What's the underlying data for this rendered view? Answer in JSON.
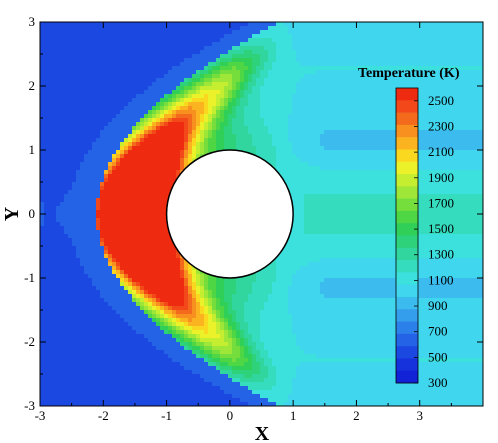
{
  "chart_data": {
    "type": "heatmap",
    "title": "",
    "xlabel": "X",
    "ylabel": "Y",
    "xlim": [
      -3,
      4
    ],
    "ylim": [
      -3,
      3
    ],
    "x_ticks": [
      "-3",
      "-2",
      "-1",
      "0",
      "1",
      "2",
      "3"
    ],
    "y_ticks": [
      "-3",
      "-2",
      "-1",
      "0",
      "1",
      "2",
      "3"
    ],
    "obstacle": {
      "shape": "circle",
      "center": [
        0,
        0
      ],
      "radius": 1,
      "fill": "#ffffff"
    },
    "legend": {
      "title": "Temperature (K)",
      "placement": "right",
      "labels": [
        "2500",
        "2300",
        "2100",
        "1900",
        "1700",
        "1500",
        "1300",
        "1100",
        "900",
        "700",
        "500",
        "300"
      ],
      "min": 300,
      "max": 2600,
      "levels": [
        {
          "value": 2550,
          "color": "#ee2a10"
        },
        {
          "value": 2450,
          "color": "#f2481a"
        },
        {
          "value": 2350,
          "color": "#f46a1c"
        },
        {
          "value": 2250,
          "color": "#f7901e"
        },
        {
          "value": 2150,
          "color": "#fbb420"
        },
        {
          "value": 2050,
          "color": "#fbd820"
        },
        {
          "value": 1950,
          "color": "#ecf22a"
        },
        {
          "value": 1850,
          "color": "#c6ee30"
        },
        {
          "value": 1750,
          "color": "#9ee638"
        },
        {
          "value": 1650,
          "color": "#76de3c"
        },
        {
          "value": 1550,
          "color": "#4ed644"
        },
        {
          "value": 1450,
          "color": "#2fcf58"
        },
        {
          "value": 1350,
          "color": "#2ed27a"
        },
        {
          "value": 1250,
          "color": "#30d69e"
        },
        {
          "value": 1150,
          "color": "#36dcbe"
        },
        {
          "value": 1050,
          "color": "#3ce0dc"
        },
        {
          "value": 950,
          "color": "#40d6ee"
        },
        {
          "value": 850,
          "color": "#3cbcee"
        },
        {
          "value": 750,
          "color": "#349eec"
        },
        {
          "value": 650,
          "color": "#2c80ea"
        },
        {
          "value": 550,
          "color": "#2462e6"
        },
        {
          "value": 450,
          "color": "#1c48e2"
        },
        {
          "value": 350,
          "color": "#1632dc"
        },
        {
          "value": 300,
          "color": "#1222d6"
        }
      ]
    },
    "field": {
      "description_model": "bow-shock hot band upstream of circular obstacle, cooler wake downstream",
      "bands": [
        {
          "region": "far-upstream",
          "value": 450
        },
        {
          "region": "shock-layer-peak",
          "value": 2550,
          "x": -1.5,
          "y": 0
        },
        {
          "region": "wake",
          "value": 1050,
          "x": 2.5,
          "y": 0
        },
        {
          "region": "outer-downstream",
          "value": 950
        }
      ]
    }
  }
}
